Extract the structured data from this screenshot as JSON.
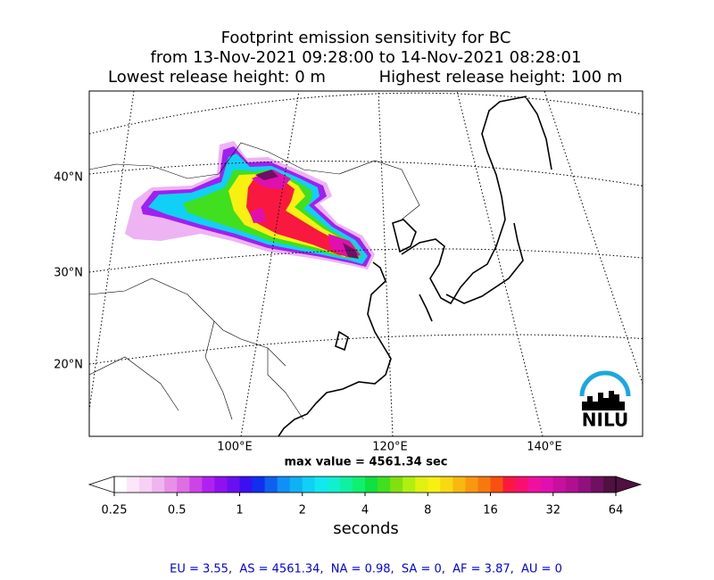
{
  "title": {
    "line1": "Footprint emission sensitivity for BC",
    "line2": "from 13-Nov-2021 09:28:00 to 14-Nov-2021 08:28:01",
    "lowest": "Lowest release height: 0 m",
    "highest": "Highest release height: 100 m"
  },
  "map": {
    "lat_labels": [
      "40°N",
      "30°N",
      "20°N"
    ],
    "lon_labels": [
      "100°E",
      "120°E",
      "140°E"
    ],
    "logo": "NILU",
    "max_value": "max value = 4561.34 sec"
  },
  "colorbar": {
    "scale": "log2",
    "lim": [
      0.25,
      64
    ],
    "ticks": [
      0.25,
      0.5,
      1,
      2,
      4,
      8,
      16,
      32,
      64
    ],
    "label": "seconds",
    "colors": [
      "#ffffff",
      "#fde6fa",
      "#f8d0f4",
      "#f0b4ee",
      "#e890e8",
      "#dd6ee4",
      "#cc44e8",
      "#b020f0",
      "#9010f0",
      "#6a10f0",
      "#3a10f0",
      "#1030f0",
      "#1060f0",
      "#1090f5",
      "#10b0f5",
      "#10d0f5",
      "#10e8f0",
      "#10f0d0",
      "#10f0a0",
      "#10f070",
      "#10e040",
      "#40e020",
      "#80e010",
      "#b0f010",
      "#e0f010",
      "#f8f010",
      "#f8d810",
      "#f8b810",
      "#f89810",
      "#f87810",
      "#f85010",
      "#f81840",
      "#f81070",
      "#f010a0",
      "#e010b0",
      "#c810a0",
      "#b01090",
      "#901080",
      "#701060",
      "#501040"
    ]
  },
  "footer": "EU = 3.55,  AS = 4561.34,  NA = 0.98,  SA = 0,  AF = 3.87,  AU = 0"
}
